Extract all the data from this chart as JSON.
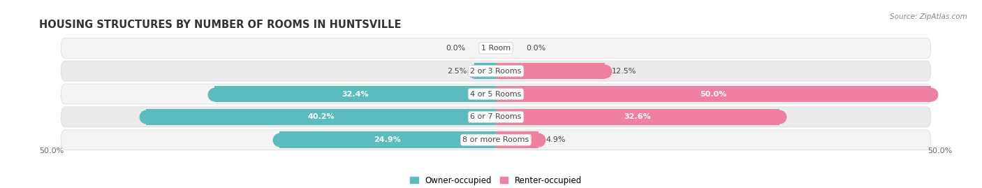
{
  "title": "HOUSING STRUCTURES BY NUMBER OF ROOMS IN HUNTSVILLE",
  "source": "Source: ZipAtlas.com",
  "categories": [
    "1 Room",
    "2 or 3 Rooms",
    "4 or 5 Rooms",
    "6 or 7 Rooms",
    "8 or more Rooms"
  ],
  "owner_values": [
    0.0,
    2.5,
    32.4,
    40.2,
    24.9
  ],
  "renter_values": [
    0.0,
    12.5,
    50.0,
    32.6,
    4.9
  ],
  "owner_color": "#5bbcbe",
  "renter_color": "#f080a0",
  "row_bg_color_odd": "#f4f4f4",
  "row_bg_color_even": "#ebebeb",
  "row_border_color": "#d8d8d8",
  "max_value": 50.0,
  "title_fontsize": 10.5,
  "label_fontsize": 8.0,
  "category_fontsize": 8.0,
  "legend_fontsize": 8.5,
  "source_fontsize": 7.5
}
